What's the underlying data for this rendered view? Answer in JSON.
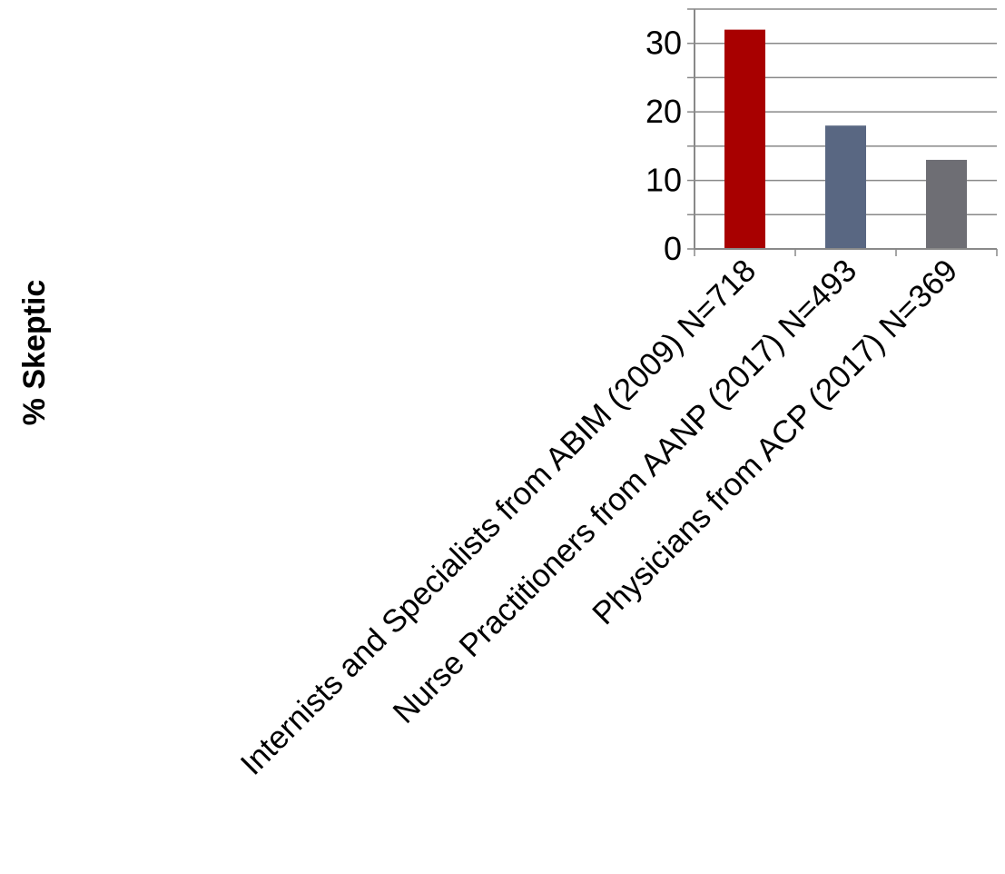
{
  "chart_data": {
    "type": "bar",
    "title": "",
    "xlabel": "",
    "ylabel": "% Skeptic",
    "categories": [
      "Internists and Specialists from ABIM (2009) N=718",
      "Nurse Practitioners from AANP (2017) N=493",
      "Physicians from ACP (2017) N=369"
    ],
    "values": [
      32,
      18,
      13
    ],
    "bar_colors": [
      "#a80000",
      "#596782",
      "#6e6e74"
    ],
    "ylim": [
      0,
      35
    ],
    "yticks": [
      0,
      10,
      20,
      30
    ],
    "minor_gridline_step": 5,
    "grid": true,
    "legend": "none"
  }
}
